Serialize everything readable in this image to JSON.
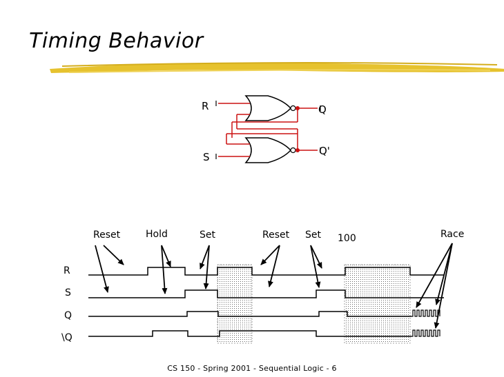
{
  "slide": {
    "title": "Timing Behavior",
    "footer": "CS 150 - Spring 2001 - Sequential Logic - 6",
    "accent_color": "#e6c22e",
    "wire_color": "#cc1111"
  },
  "circuit": {
    "input_r": "R",
    "input_s": "S",
    "output_q": "Q",
    "output_q_bar": "Q'"
  },
  "timing": {
    "signals": [
      "R",
      "S",
      "Q",
      "\\Q"
    ],
    "annotations": [
      "Reset",
      "Hold",
      "Set",
      "Reset",
      "Set",
      "100",
      "Race"
    ]
  }
}
